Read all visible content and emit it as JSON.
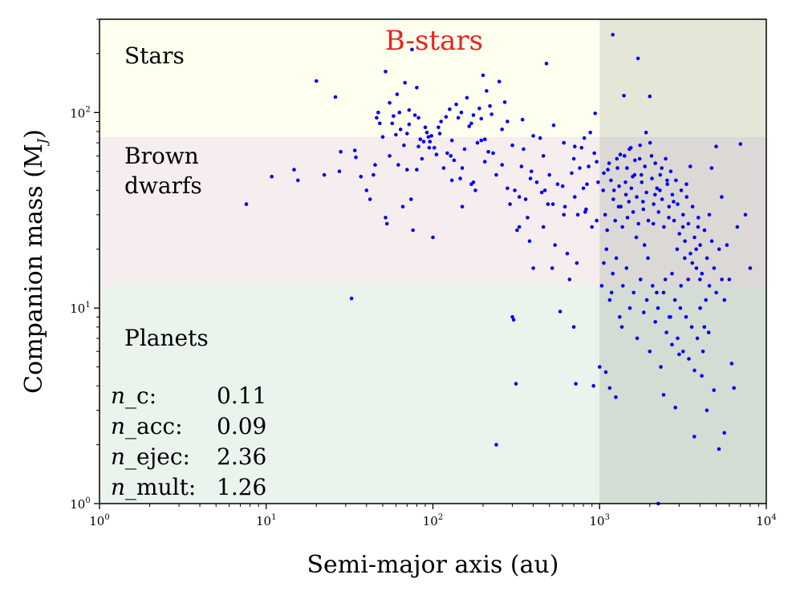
{
  "chart_data": {
    "type": "scatter",
    "title": "B-stars",
    "title_color": "#e8231f",
    "xlabel": "Semi-major axis (au)",
    "ylabel": "Companion mass (M",
    "ylabel_symbol": "M",
    "ylabel_subscript": "J",
    "ylabel_close": ")",
    "xscale": "log",
    "yscale": "log",
    "xlim": [
      1,
      10000
    ],
    "ylim": [
      1,
      300
    ],
    "x_ticks": [
      {
        "value": 1,
        "base": "10",
        "exp": "0"
      },
      {
        "value": 10,
        "base": "10",
        "exp": "1"
      },
      {
        "value": 100,
        "base": "10",
        "exp": "2"
      },
      {
        "value": 1000,
        "base": "10",
        "exp": "3"
      },
      {
        "value": 10000,
        "base": "10",
        "exp": "4"
      }
    ],
    "y_ticks": [
      {
        "value": 1,
        "base": "10",
        "exp": "0"
      },
      {
        "value": 10,
        "base": "10",
        "exp": "1"
      },
      {
        "value": 100,
        "base": "10",
        "exp": "2"
      }
    ],
    "regions": [
      {
        "name": "Stars",
        "lines": [
          "Stars"
        ],
        "y_range": [
          75,
          300
        ],
        "color": "#fffff0"
      },
      {
        "name": "Brown dwarfs",
        "lines": [
          "Brown",
          "dwarfs"
        ],
        "y_range": [
          13,
          75
        ],
        "color": "#f6eeee"
      },
      {
        "name": "Planets",
        "lines": [
          "Planets"
        ],
        "y_range": [
          1,
          13
        ],
        "color": "#ebf4ec"
      }
    ],
    "shaded_x_region": {
      "x_range": [
        1000,
        10000
      ],
      "color": "#556b55",
      "opacity": 0.16
    },
    "point_color": "#0000ee",
    "stats": [
      {
        "italic": "n",
        "label": "_c:",
        "value": "0.11"
      },
      {
        "italic": "n",
        "label": "_acc:",
        "value": "0.09"
      },
      {
        "italic": "n",
        "label": "_ejec:",
        "value": "2.36"
      },
      {
        "italic": "n",
        "label": "_mult:",
        "value": "1.26"
      }
    ],
    "points": [
      [
        7.6,
        34
      ],
      [
        10.8,
        47
      ],
      [
        14.7,
        51
      ],
      [
        15.5,
        45
      ],
      [
        20,
        145
      ],
      [
        22.3,
        48
      ],
      [
        26,
        120
      ],
      [
        27.5,
        50
      ],
      [
        28,
        63
      ],
      [
        32.5,
        11.2
      ],
      [
        34,
        64
      ],
      [
        34.5,
        59
      ],
      [
        37,
        47
      ],
      [
        40,
        40
      ],
      [
        42,
        36
      ],
      [
        44,
        48
      ],
      [
        45,
        54
      ],
      [
        46,
        94
      ],
      [
        47,
        100
      ],
      [
        48,
        88
      ],
      [
        50,
        75
      ],
      [
        52,
        29
      ],
      [
        52,
        162
      ],
      [
        53,
        27
      ],
      [
        55,
        60
      ],
      [
        57,
        88
      ],
      [
        58,
        96
      ],
      [
        60,
        77
      ],
      [
        61,
        124
      ],
      [
        62,
        54
      ],
      [
        64,
        82
      ],
      [
        66,
        33
      ],
      [
        67,
        68
      ],
      [
        68,
        142
      ],
      [
        70,
        51
      ],
      [
        70,
        78
      ],
      [
        72,
        103
      ],
      [
        74,
        36
      ],
      [
        75,
        210
      ],
      [
        76,
        25
      ],
      [
        78,
        97
      ],
      [
        80,
        51
      ],
      [
        80,
        134
      ],
      [
        82,
        67
      ],
      [
        84,
        73
      ],
      [
        86,
        58
      ],
      [
        88,
        71
      ],
      [
        90,
        84
      ],
      [
        92,
        79
      ],
      [
        94,
        75
      ],
      [
        96,
        71
      ],
      [
        98,
        76
      ],
      [
        100,
        23
      ],
      [
        102,
        66
      ],
      [
        105,
        61
      ],
      [
        108,
        84
      ],
      [
        112,
        90
      ],
      [
        116,
        52
      ],
      [
        120,
        95
      ],
      [
        122,
        62
      ],
      [
        126,
        104
      ],
      [
        130,
        72
      ],
      [
        134,
        57
      ],
      [
        138,
        110
      ],
      [
        142,
        94
      ],
      [
        146,
        46
      ],
      [
        150,
        33
      ],
      [
        155,
        65
      ],
      [
        160,
        119
      ],
      [
        165,
        85
      ],
      [
        170,
        43
      ],
      [
        175,
        97
      ],
      [
        180,
        40
      ],
      [
        185,
        70
      ],
      [
        190,
        105
      ],
      [
        195,
        93
      ],
      [
        200,
        155
      ],
      [
        205,
        73
      ],
      [
        210,
        129
      ],
      [
        215,
        63
      ],
      [
        220,
        108
      ],
      [
        230,
        62
      ],
      [
        240,
        2.0
      ],
      [
        250,
        144
      ],
      [
        260,
        54
      ],
      [
        270,
        113
      ],
      [
        280,
        90
      ],
      [
        290,
        34
      ],
      [
        300,
        9
      ],
      [
        305,
        8.7
      ],
      [
        310,
        40
      ],
      [
        315,
        4.1
      ],
      [
        320,
        25
      ],
      [
        330,
        26
      ],
      [
        340,
        53
      ],
      [
        350,
        65
      ],
      [
        360,
        36
      ],
      [
        370,
        29
      ],
      [
        380,
        22
      ],
      [
        390,
        50
      ],
      [
        400,
        16
      ],
      [
        420,
        44
      ],
      [
        440,
        74
      ],
      [
        460,
        26
      ],
      [
        470,
        40
      ],
      [
        480,
        178
      ],
      [
        490,
        34
      ],
      [
        500,
        48
      ],
      [
        520,
        16
      ],
      [
        540,
        21
      ],
      [
        560,
        43
      ],
      [
        580,
        9.6
      ],
      [
        600,
        42
      ],
      [
        620,
        33
      ],
      [
        640,
        19
      ],
      [
        660,
        14
      ],
      [
        680,
        49
      ],
      [
        700,
        8.0
      ],
      [
        710,
        67
      ],
      [
        720,
        4.1
      ],
      [
        730,
        17
      ],
      [
        740,
        30
      ],
      [
        760,
        52
      ],
      [
        780,
        66
      ],
      [
        800,
        41
      ],
      [
        820,
        31
      ],
      [
        840,
        43
      ],
      [
        860,
        53
      ],
      [
        880,
        79
      ],
      [
        900,
        26
      ],
      [
        920,
        4.0
      ],
      [
        940,
        99
      ],
      [
        960,
        56
      ],
      [
        980,
        44
      ],
      [
        1000,
        5.0
      ],
      [
        1030,
        13
      ],
      [
        1060,
        49
      ],
      [
        1090,
        4.7
      ],
      [
        1120,
        51
      ],
      [
        1150,
        3.9
      ],
      [
        1180,
        12
      ],
      [
        1200,
        250
      ],
      [
        1220,
        40
      ],
      [
        1250,
        3.5
      ],
      [
        1280,
        52
      ],
      [
        1300,
        33
      ],
      [
        1330,
        61
      ],
      [
        1360,
        8
      ],
      [
        1400,
        122
      ],
      [
        1430,
        44
      ],
      [
        1460,
        52
      ],
      [
        1500,
        35
      ],
      [
        1540,
        66
      ],
      [
        1580,
        47
      ],
      [
        1620,
        48
      ],
      [
        1660,
        23
      ],
      [
        1700,
        189
      ],
      [
        1740,
        58
      ],
      [
        1780,
        48
      ],
      [
        1820,
        35
      ],
      [
        1860,
        21
      ],
      [
        1900,
        79
      ],
      [
        1950,
        18
      ],
      [
        2000,
        121
      ],
      [
        2050,
        60
      ],
      [
        2100,
        27
      ],
      [
        2150,
        38
      ],
      [
        2200,
        12
      ],
      [
        2250,
        1.0
      ],
      [
        2300,
        40
      ],
      [
        2360,
        52
      ],
      [
        2420,
        3.6
      ],
      [
        2480,
        14
      ],
      [
        2540,
        45
      ],
      [
        2600,
        29
      ],
      [
        2660,
        9
      ],
      [
        2720,
        15
      ],
      [
        2780,
        35
      ],
      [
        2850,
        3.1
      ],
      [
        2920,
        20
      ],
      [
        3000,
        5.8
      ],
      [
        3080,
        13
      ],
      [
        3160,
        26
      ],
      [
        3240,
        18
      ],
      [
        3320,
        43
      ],
      [
        3400,
        14
      ],
      [
        3500,
        53
      ],
      [
        3600,
        17
      ],
      [
        3700,
        2.2
      ],
      [
        3800,
        20
      ],
      [
        3900,
        26
      ],
      [
        4000,
        14
      ],
      [
        4100,
        4.5
      ],
      [
        4250,
        8
      ],
      [
        4400,
        3.0
      ],
      [
        4550,
        30
      ],
      [
        4700,
        52
      ],
      [
        4850,
        3.8
      ],
      [
        5000,
        67
      ],
      [
        5200,
        1.9
      ],
      [
        5400,
        37
      ],
      [
        5600,
        2.3
      ],
      [
        5800,
        21
      ],
      [
        6000,
        14
      ],
      [
        6200,
        5.2
      ],
      [
        6400,
        3.9
      ],
      [
        6700,
        26
      ],
      [
        7000,
        69
      ],
      [
        7500,
        30
      ],
      [
        8000,
        16
      ],
      [
        1050,
        40
      ],
      [
        1080,
        30
      ],
      [
        1110,
        25
      ],
      [
        1140,
        55
      ],
      [
        1170,
        45
      ],
      [
        1210,
        36
      ],
      [
        1240,
        28
      ],
      [
        1270,
        58
      ],
      [
        1310,
        42
      ],
      [
        1340,
        33
      ],
      [
        1370,
        26
      ],
      [
        1410,
        60
      ],
      [
        1440,
        38
      ],
      [
        1470,
        29
      ],
      [
        1510,
        65
      ],
      [
        1550,
        41
      ],
      [
        1590,
        31
      ],
      [
        1630,
        57
      ],
      [
        1670,
        37
      ],
      [
        1710,
        27
      ],
      [
        1750,
        68
      ],
      [
        1790,
        44
      ],
      [
        1830,
        32
      ],
      [
        1870,
        53
      ],
      [
        1910,
        39
      ],
      [
        1960,
        28
      ],
      [
        2010,
        70
      ],
      [
        2060,
        46
      ],
      [
        2110,
        34
      ],
      [
        2160,
        55
      ],
      [
        2210,
        41
      ],
      [
        2260,
        31
      ],
      [
        2310,
        48
      ],
      [
        2370,
        36
      ],
      [
        2430,
        26
      ],
      [
        2490,
        58
      ],
      [
        2550,
        43
      ],
      [
        2610,
        33
      ],
      [
        2670,
        50
      ],
      [
        2730,
        38
      ],
      [
        2800,
        28
      ],
      [
        2870,
        45
      ],
      [
        2940,
        34
      ],
      [
        3010,
        24
      ],
      [
        3090,
        40
      ],
      [
        3170,
        30
      ],
      [
        3250,
        22
      ],
      [
        3330,
        37
      ],
      [
        3410,
        27
      ],
      [
        3510,
        19
      ],
      [
        3610,
        33
      ],
      [
        3710,
        23
      ],
      [
        3810,
        16
      ],
      [
        3910,
        29
      ],
      [
        4010,
        21
      ],
      [
        4110,
        15
      ],
      [
        4260,
        25
      ],
      [
        4410,
        18
      ],
      [
        4560,
        13
      ],
      [
        4710,
        22
      ],
      [
        4860,
        16
      ],
      [
        5010,
        12
      ],
      [
        5210,
        20
      ],
      [
        5410,
        14
      ],
      [
        5610,
        11
      ],
      [
        1060,
        17
      ],
      [
        1100,
        20
      ],
      [
        1150,
        11
      ],
      [
        1200,
        15
      ],
      [
        1260,
        18
      ],
      [
        1320,
        9
      ],
      [
        1380,
        13
      ],
      [
        1450,
        16
      ],
      [
        1520,
        10
      ],
      [
        1600,
        12
      ],
      [
        1680,
        7
      ],
      [
        1760,
        14
      ],
      [
        1840,
        9.5
      ],
      [
        1920,
        11
      ],
      [
        2000,
        6
      ],
      [
        2080,
        13
      ],
      [
        2160,
        8.5
      ],
      [
        2240,
        10
      ],
      [
        2330,
        5
      ],
      [
        2420,
        12
      ],
      [
        2520,
        7.5
      ],
      [
        2620,
        9
      ],
      [
        2720,
        6.5
      ],
      [
        2830,
        11
      ],
      [
        2940,
        7
      ],
      [
        3050,
        10
      ],
      [
        3170,
        6
      ],
      [
        3300,
        9
      ],
      [
        3430,
        5.5
      ],
      [
        3570,
        8
      ],
      [
        3710,
        4.8
      ],
      [
        3860,
        7
      ],
      [
        4010,
        10
      ],
      [
        4170,
        6
      ],
      [
        4340,
        11
      ],
      [
        4510,
        7.5
      ],
      [
        55,
        112
      ],
      [
        63,
        100
      ],
      [
        72,
        87
      ],
      [
        82,
        94
      ],
      [
        95,
        66
      ],
      [
        110,
        78
      ],
      [
        128,
        60
      ],
      [
        148,
        100
      ],
      [
        170,
        88
      ],
      [
        195,
        72
      ],
      [
        225,
        98
      ],
      [
        260,
        82
      ],
      [
        300,
        68
      ],
      [
        345,
        92
      ],
      [
        400,
        76
      ],
      [
        460,
        60
      ],
      [
        530,
        86
      ],
      [
        610,
        70
      ],
      [
        700,
        58
      ],
      [
        810,
        74
      ],
      [
        930,
        62
      ],
      [
        130,
        45
      ],
      [
        150,
        52
      ],
      [
        175,
        44
      ],
      [
        205,
        56
      ],
      [
        240,
        48
      ],
      [
        280,
        41
      ],
      [
        330,
        37
      ],
      [
        385,
        46
      ],
      [
        450,
        39
      ],
      [
        525,
        34
      ],
      [
        610,
        30
      ],
      [
        710,
        37
      ],
      [
        830,
        32
      ],
      [
        960,
        28
      ]
    ]
  }
}
